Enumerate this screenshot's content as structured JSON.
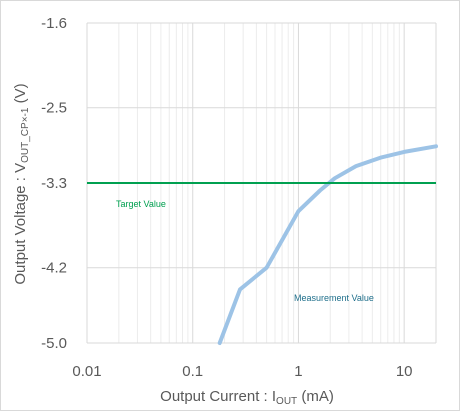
{
  "chart_data": {
    "type": "line",
    "x_scale": "log",
    "xlim": [
      0.01,
      20
    ],
    "ylim": [
      -5.0,
      -1.6
    ],
    "x_ticks": [
      0.01,
      0.1,
      1,
      10
    ],
    "x_tick_labels": [
      "0.01",
      "0.1",
      "1",
      "10"
    ],
    "y_ticks": [
      -1.6,
      -2.5,
      -3.3,
      -4.2,
      -5.0
    ],
    "y_tick_labels": [
      "-1.6",
      "-2.5",
      "-3.3",
      "-4.2",
      "-5.0"
    ],
    "xlabel": {
      "prefix": "Output Current : I",
      "subscript": "OUT",
      "suffix": " (mA)"
    },
    "ylabel": {
      "prefix": "Output Voltage : V",
      "subscript": "OUT_CP×-1",
      "suffix": " (V)"
    },
    "grid": true,
    "series": [
      {
        "name": "Measurement Value",
        "color": "#9dc3e6",
        "x": [
          0.18,
          0.28,
          0.5,
          1.0,
          1.6,
          2.2,
          3.5,
          6.0,
          10,
          20
        ],
        "y": [
          -5.0,
          -4.43,
          -4.2,
          -3.6,
          -3.38,
          -3.25,
          -3.12,
          -3.03,
          -2.97,
          -2.91
        ]
      },
      {
        "name": "Target Value",
        "color": "#00a050",
        "x": [
          0.01,
          20
        ],
        "y": [
          -3.3,
          -3.3
        ]
      }
    ],
    "annotations": [
      "Target Value",
      "Measurement Value"
    ]
  }
}
